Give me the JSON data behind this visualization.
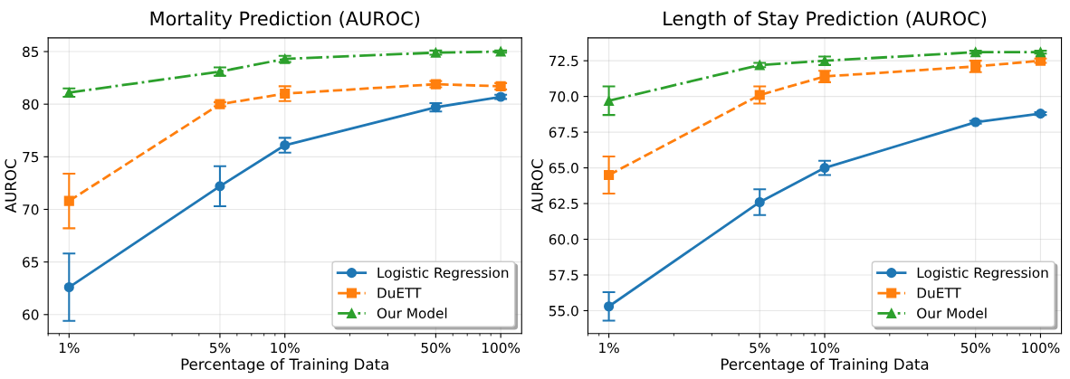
{
  "chart_data": [
    {
      "type": "line",
      "title": "Mortality Prediction (AUROC)",
      "xlabel": "Percentage of Training Data",
      "ylabel": "AUROC",
      "log": "x",
      "x": [
        1,
        5,
        10,
        50,
        100
      ],
      "xlim": [
        0.8,
        125
      ],
      "xticks": [
        {
          "value": 1,
          "label": "1%"
        },
        {
          "value": 5,
          "label": "5%"
        },
        {
          "value": 10,
          "label": "10%"
        },
        {
          "value": 50,
          "label": "50%"
        },
        {
          "value": 100,
          "label": "100%"
        }
      ],
      "ylim": [
        58.2,
        86.3
      ],
      "yticks": [
        60,
        65,
        70,
        75,
        80,
        85
      ],
      "grid": true,
      "legend": "lower right",
      "series": [
        {
          "name": "Logistic Regression",
          "color": "#1f77b4",
          "marker": "circle",
          "line_style": "solid",
          "values": [
            62.6,
            72.2,
            76.1,
            79.7,
            80.7
          ],
          "errors": [
            3.2,
            1.9,
            0.7,
            0.4,
            0.2
          ]
        },
        {
          "name": "DuETT",
          "color": "#ff7f0e",
          "marker": "square",
          "line_style": "dashed",
          "values": [
            70.8,
            80.0,
            81.0,
            81.9,
            81.7
          ],
          "errors": [
            2.6,
            0.2,
            0.7,
            0.3,
            0.3
          ]
        },
        {
          "name": "Our Model",
          "color": "#2ca02c",
          "marker": "triangle",
          "line_style": "dashdot",
          "values": [
            81.1,
            83.1,
            84.3,
            84.9,
            85.0
          ],
          "errors": [
            0.4,
            0.4,
            0.3,
            0.2,
            0.1
          ]
        }
      ]
    },
    {
      "type": "line",
      "title": "Length of Stay Prediction (AUROC)",
      "xlabel": "Percentage of Training Data",
      "ylabel": "AUROC",
      "log": "x",
      "x": [
        1,
        5,
        10,
        50,
        100
      ],
      "xlim": [
        0.8,
        125
      ],
      "xticks": [
        {
          "value": 1,
          "label": "1%"
        },
        {
          "value": 5,
          "label": "5%"
        },
        {
          "value": 10,
          "label": "10%"
        },
        {
          "value": 50,
          "label": "50%"
        },
        {
          "value": 100,
          "label": "100%"
        }
      ],
      "ylim": [
        53.4,
        74.1
      ],
      "yticks": [
        {
          "value": 55,
          "label": "55.0"
        },
        {
          "value": 57.5,
          "label": "57.5"
        },
        {
          "value": 60,
          "label": "60.0"
        },
        {
          "value": 62.5,
          "label": "62.5"
        },
        {
          "value": 65,
          "label": "65.0"
        },
        {
          "value": 67.5,
          "label": "67.5"
        },
        {
          "value": 70,
          "label": "70.0"
        },
        {
          "value": 72.5,
          "label": "72.5"
        }
      ],
      "grid": true,
      "legend": "lower right",
      "series": [
        {
          "name": "Logistic Regression",
          "color": "#1f77b4",
          "marker": "circle",
          "line_style": "solid",
          "values": [
            55.3,
            62.6,
            65.0,
            68.2,
            68.8
          ],
          "errors": [
            1.0,
            0.9,
            0.5,
            0.1,
            0.1
          ]
        },
        {
          "name": "DuETT",
          "color": "#ff7f0e",
          "marker": "square",
          "line_style": "dashed",
          "values": [
            64.5,
            70.1,
            71.4,
            72.1,
            72.5
          ],
          "errors": [
            1.3,
            0.6,
            0.4,
            0.4,
            0.15
          ]
        },
        {
          "name": "Our Model",
          "color": "#2ca02c",
          "marker": "triangle",
          "line_style": "dashdot",
          "values": [
            69.7,
            72.2,
            72.5,
            73.1,
            73.1
          ],
          "errors": [
            1.0,
            0.15,
            0.3,
            0.1,
            0.1
          ]
        }
      ]
    }
  ]
}
